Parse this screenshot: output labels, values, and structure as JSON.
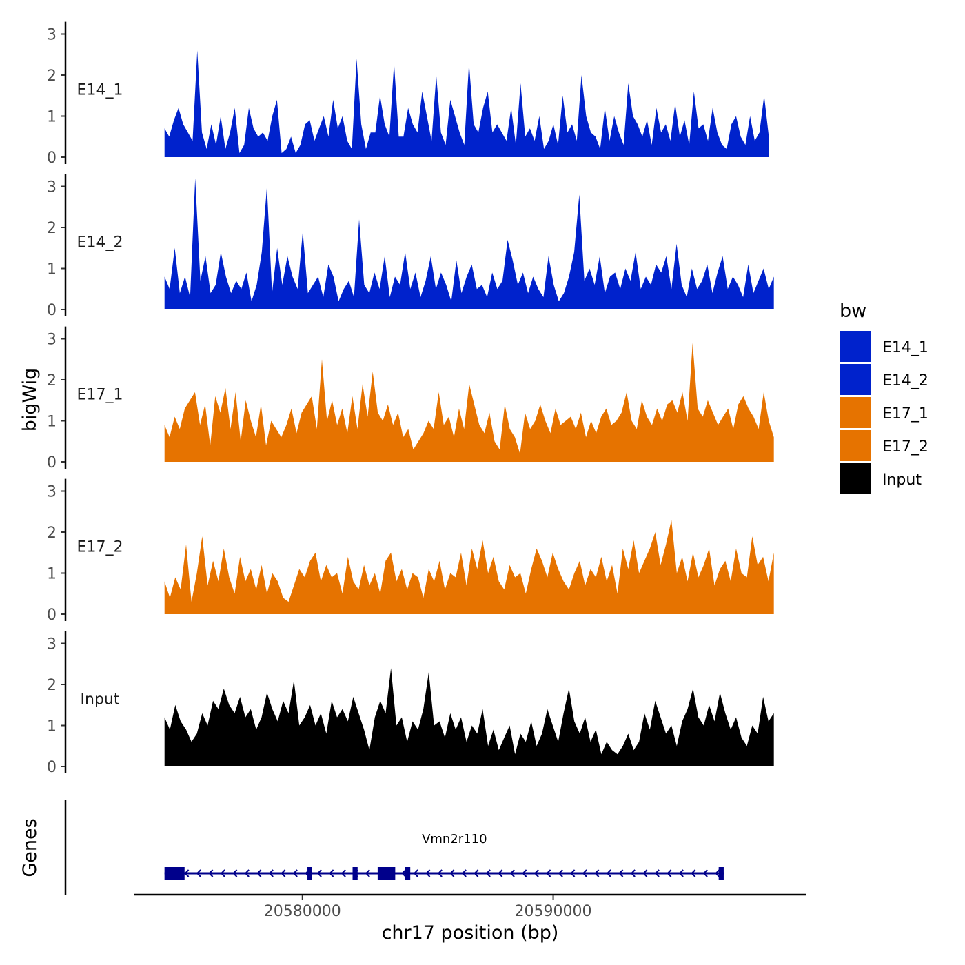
{
  "chart_data": {
    "type": "area",
    "ylabel": "bigWig",
    "xlabel": "chr17 position (bp)",
    "ylim": [
      0,
      3.2
    ],
    "y_ticks": [
      "0",
      "1",
      "2",
      "3"
    ],
    "xlim": [
      20573300,
      20600100
    ],
    "x_ticks": [
      {
        "value": 20580000,
        "label": "20580000"
      },
      {
        "value": 20590000,
        "label": "20590000"
      }
    ],
    "gene_track_label": "Genes",
    "legend": {
      "title": "bw",
      "entries": [
        {
          "name": "E14_1",
          "color": "#0022cc"
        },
        {
          "name": "E14_2",
          "color": "#0022cc"
        },
        {
          "name": "E17_1",
          "color": "#e67300"
        },
        {
          "name": "E17_2",
          "color": "#e67300"
        },
        {
          "name": "Input",
          "color": "#000000"
        }
      ]
    },
    "series": [
      {
        "name": "E14_1",
        "color": "#0022cc",
        "x_start": 20574500,
        "x_end": 20598600,
        "values": [
          0.7,
          0.5,
          0.9,
          1.2,
          0.8,
          0.6,
          0.4,
          2.6,
          0.6,
          0.2,
          0.8,
          0.3,
          1.0,
          0.2,
          0.6,
          1.2,
          0.1,
          0.3,
          1.2,
          0.7,
          0.5,
          0.6,
          0.4,
          1.0,
          1.4,
          0.1,
          0.2,
          0.5,
          0.1,
          0.3,
          0.8,
          0.9,
          0.4,
          0.7,
          1.0,
          0.5,
          1.4,
          0.7,
          1.0,
          0.4,
          0.2,
          2.4,
          0.8,
          0.2,
          0.6,
          0.6,
          1.5,
          0.8,
          0.5,
          2.3,
          0.5,
          0.5,
          1.2,
          0.8,
          0.6,
          1.6,
          1.0,
          0.4,
          2.0,
          0.6,
          0.3,
          1.4,
          1.0,
          0.6,
          0.3,
          2.3,
          0.8,
          0.6,
          1.2,
          1.6,
          0.6,
          0.8,
          0.6,
          0.4,
          1.2,
          0.3,
          1.8,
          0.5,
          0.7,
          0.4,
          1.0,
          0.2,
          0.4,
          0.8,
          0.3,
          1.5,
          0.6,
          0.8,
          0.4,
          2.0,
          1.0,
          0.6,
          0.5,
          0.2,
          1.2,
          0.4,
          1.0,
          0.6,
          0.3,
          1.8,
          1.0,
          0.8,
          0.5,
          0.9,
          0.3,
          1.2,
          0.6,
          0.8,
          0.4,
          1.3,
          0.5,
          0.9,
          0.3,
          1.6,
          0.7,
          0.8,
          0.4,
          1.2,
          0.6,
          0.3,
          0.2,
          0.8,
          1.0,
          0.5,
          0.3,
          1.0,
          0.4,
          0.6,
          1.5,
          0.5
        ]
      },
      {
        "name": "E14_2",
        "color": "#0022cc",
        "x_start": 20574500,
        "x_end": 20598800,
        "values": [
          0.8,
          0.5,
          1.5,
          0.4,
          0.8,
          0.3,
          3.2,
          0.7,
          1.3,
          0.4,
          0.6,
          1.4,
          0.8,
          0.4,
          0.7,
          0.5,
          0.9,
          0.2,
          0.6,
          1.4,
          3.0,
          0.4,
          1.5,
          0.6,
          1.3,
          0.8,
          0.5,
          1.9,
          0.4,
          0.6,
          0.8,
          0.3,
          1.1,
          0.8,
          0.2,
          0.5,
          0.7,
          0.3,
          2.2,
          0.6,
          0.4,
          0.9,
          0.5,
          1.3,
          0.3,
          0.8,
          0.6,
          1.4,
          0.5,
          0.9,
          0.3,
          0.7,
          1.3,
          0.5,
          0.9,
          0.6,
          0.2,
          1.2,
          0.4,
          0.8,
          1.1,
          0.5,
          0.6,
          0.3,
          0.9,
          0.5,
          0.7,
          1.7,
          1.2,
          0.6,
          0.9,
          0.4,
          0.8,
          0.5,
          0.3,
          1.3,
          0.6,
          0.2,
          0.4,
          0.8,
          1.4,
          2.8,
          0.7,
          1.0,
          0.6,
          1.3,
          0.4,
          0.8,
          0.9,
          0.5,
          1.0,
          0.7,
          1.4,
          0.5,
          0.8,
          0.6,
          1.1,
          0.9,
          1.3,
          0.5,
          1.6,
          0.6,
          0.3,
          1.0,
          0.5,
          0.7,
          1.1,
          0.4,
          0.9,
          1.3,
          0.5,
          0.8,
          0.6,
          0.3,
          1.1,
          0.4,
          0.7,
          1.0,
          0.5,
          0.8
        ]
      },
      {
        "name": "E17_1",
        "color": "#e67300",
        "x_start": 20574500,
        "x_end": 20598800,
        "values": [
          0.9,
          0.6,
          1.1,
          0.8,
          1.3,
          1.5,
          1.7,
          0.9,
          1.4,
          0.4,
          1.6,
          1.2,
          1.8,
          0.8,
          1.7,
          0.5,
          1.5,
          1.0,
          0.6,
          1.4,
          0.4,
          1.0,
          0.8,
          0.6,
          0.9,
          1.3,
          0.7,
          1.2,
          1.4,
          1.6,
          0.8,
          2.5,
          1.0,
          1.5,
          0.9,
          1.3,
          0.7,
          1.6,
          0.8,
          1.9,
          1.1,
          2.2,
          1.2,
          1.0,
          1.4,
          0.9,
          1.2,
          0.6,
          0.8,
          0.3,
          0.5,
          0.7,
          1.0,
          0.8,
          1.7,
          0.9,
          1.1,
          0.6,
          1.3,
          0.8,
          1.9,
          1.4,
          0.9,
          0.7,
          1.2,
          0.5,
          0.3,
          1.4,
          0.8,
          0.6,
          0.2,
          1.2,
          0.8,
          1.0,
          1.4,
          1.0,
          0.7,
          1.3,
          0.9,
          1.0,
          1.1,
          0.8,
          1.2,
          0.6,
          1.0,
          0.7,
          1.1,
          1.3,
          0.9,
          1.0,
          1.2,
          1.7,
          1.0,
          0.8,
          1.5,
          1.1,
          0.9,
          1.3,
          1.0,
          1.4,
          1.5,
          1.2,
          1.7,
          1.0,
          2.9,
          1.3,
          1.1,
          1.5,
          1.2,
          0.9,
          1.1,
          1.3,
          0.8,
          1.4,
          1.6,
          1.3,
          1.1,
          0.8,
          1.7,
          1.0,
          0.6
        ]
      },
      {
        "name": "E17_2",
        "color": "#e67300",
        "x_start": 20574500,
        "x_end": 20598800,
        "values": [
          0.8,
          0.4,
          0.9,
          0.6,
          1.7,
          0.3,
          1.0,
          1.9,
          0.7,
          1.3,
          0.8,
          1.6,
          0.9,
          0.5,
          1.4,
          0.8,
          1.1,
          0.6,
          1.2,
          0.5,
          1.0,
          0.8,
          0.4,
          0.3,
          0.7,
          1.1,
          0.9,
          1.3,
          1.5,
          0.8,
          1.2,
          0.9,
          1.0,
          0.5,
          1.4,
          0.8,
          0.6,
          1.2,
          0.7,
          1.0,
          0.5,
          1.3,
          1.5,
          0.8,
          1.1,
          0.6,
          1.0,
          0.9,
          0.4,
          1.1,
          0.8,
          1.3,
          0.6,
          1.0,
          0.9,
          1.5,
          0.7,
          1.6,
          1.1,
          1.8,
          1.0,
          1.4,
          0.8,
          0.6,
          1.2,
          0.9,
          1.0,
          0.5,
          1.1,
          1.6,
          1.3,
          0.9,
          1.5,
          1.1,
          0.8,
          0.6,
          1.0,
          1.3,
          0.7,
          1.1,
          0.9,
          1.4,
          0.8,
          1.2,
          0.5,
          1.6,
          1.1,
          1.8,
          1.0,
          1.3,
          1.6,
          2.0,
          1.2,
          1.7,
          2.3,
          1.0,
          1.4,
          0.8,
          1.5,
          0.9,
          1.2,
          1.6,
          0.7,
          1.1,
          1.3,
          0.8,
          1.6,
          1.0,
          0.9,
          1.9,
          1.2,
          1.4,
          0.8,
          1.5
        ]
      },
      {
        "name": "Input",
        "color": "#000000",
        "x_start": 20574500,
        "x_end": 20598800,
        "values": [
          1.2,
          0.9,
          1.5,
          1.1,
          0.9,
          0.6,
          0.8,
          1.3,
          1.0,
          1.6,
          1.4,
          1.9,
          1.5,
          1.3,
          1.7,
          1.2,
          1.4,
          0.9,
          1.2,
          1.8,
          1.4,
          1.1,
          1.6,
          1.3,
          2.1,
          1.0,
          1.2,
          1.5,
          1.0,
          1.3,
          0.8,
          1.6,
          1.2,
          1.4,
          1.1,
          1.7,
          1.3,
          0.9,
          0.4,
          1.2,
          1.6,
          1.3,
          2.4,
          1.0,
          1.2,
          0.6,
          1.1,
          0.9,
          1.4,
          2.3,
          1.0,
          1.1,
          0.7,
          1.3,
          0.9,
          1.2,
          0.6,
          1.0,
          0.8,
          1.4,
          0.5,
          0.9,
          0.4,
          0.7,
          1.0,
          0.3,
          0.8,
          0.6,
          1.1,
          0.5,
          0.8,
          1.4,
          1.0,
          0.6,
          1.3,
          1.9,
          1.1,
          0.8,
          1.2,
          0.6,
          0.9,
          0.3,
          0.6,
          0.4,
          0.3,
          0.5,
          0.8,
          0.4,
          0.6,
          1.3,
          0.9,
          1.6,
          1.2,
          0.8,
          1.0,
          0.5,
          1.1,
          1.4,
          1.9,
          1.2,
          1.0,
          1.5,
          1.1,
          1.8,
          1.3,
          0.9,
          1.2,
          0.7,
          0.5,
          1.0,
          0.8,
          1.7,
          1.1,
          1.3
        ]
      }
    ],
    "gene": {
      "name": "Vmn2r110",
      "strand": "-",
      "start": 20574500,
      "end": 20596800,
      "exons": [
        [
          20574500,
          20575300
        ],
        [
          20580200,
          20580300
        ],
        [
          20582000,
          20582200
        ],
        [
          20583000,
          20583700
        ],
        [
          20584100,
          20584300
        ],
        [
          20596600,
          20596800
        ]
      ]
    }
  }
}
